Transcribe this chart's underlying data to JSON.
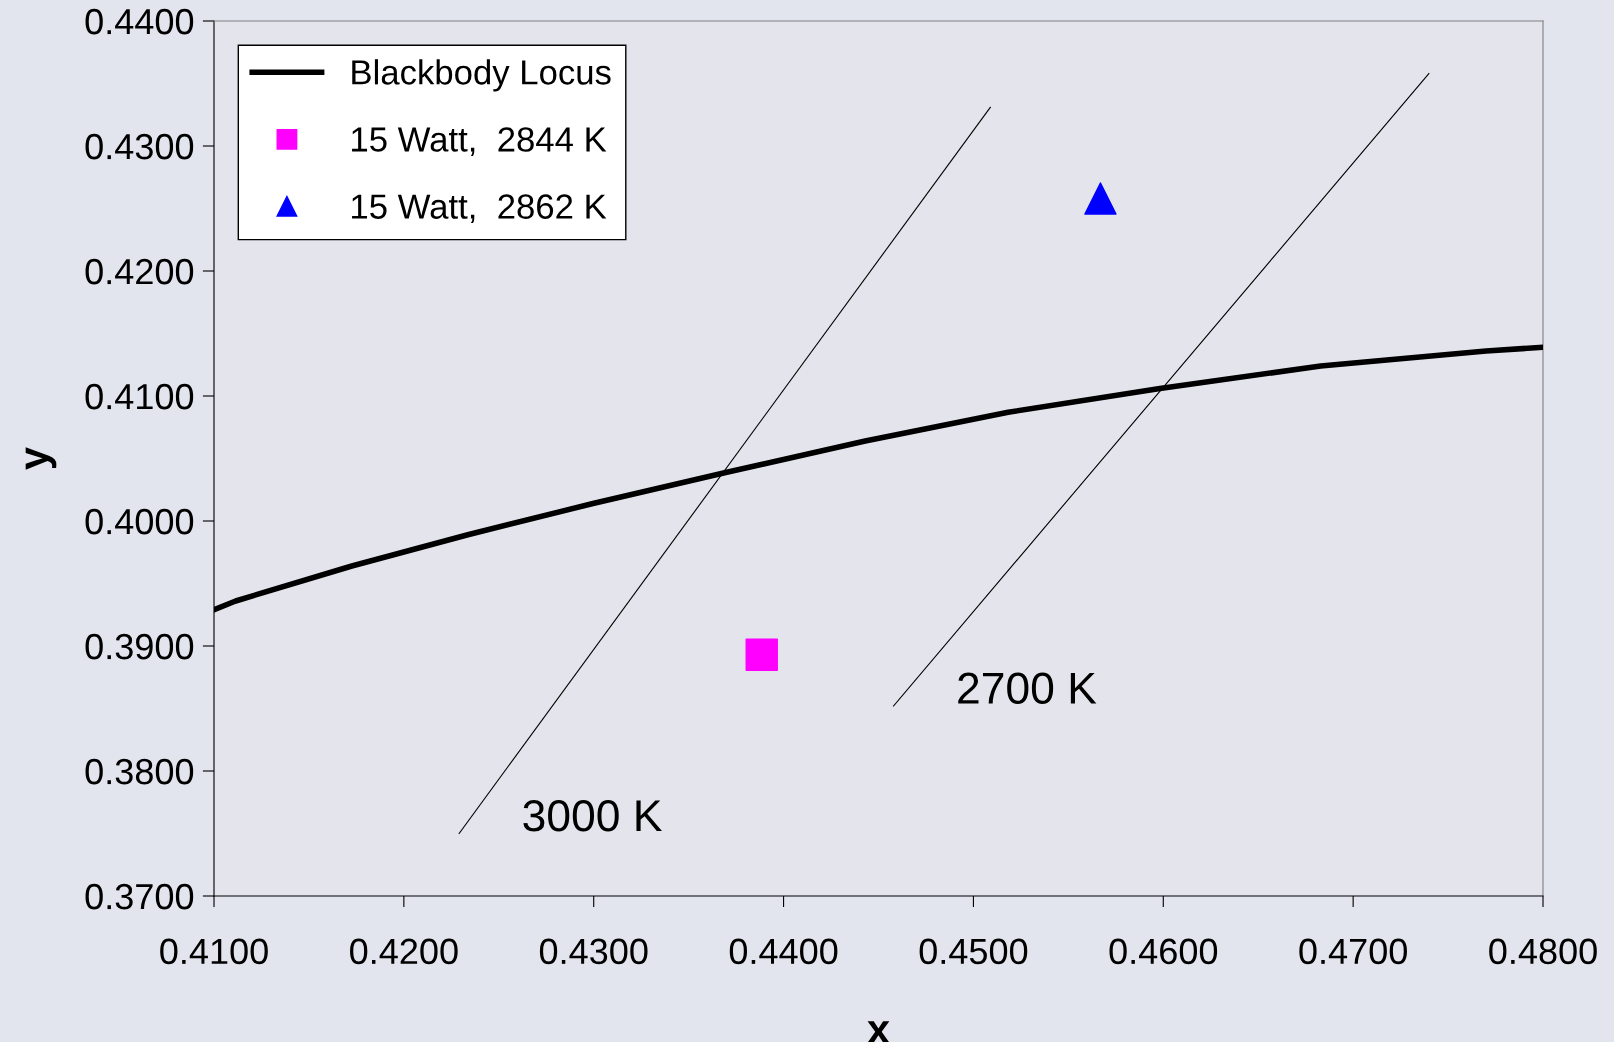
{
  "chart_data": {
    "type": "line",
    "xlabel": "x",
    "ylabel": "y",
    "xlim": [
      0.41,
      0.48
    ],
    "ylim": [
      0.37,
      0.44
    ],
    "xticks": [
      {
        "value": 0.41,
        "label": "0.4100"
      },
      {
        "value": 0.42,
        "label": "0.4200"
      },
      {
        "value": 0.43,
        "label": "0.4300"
      },
      {
        "value": 0.44,
        "label": "0.4400"
      },
      {
        "value": 0.45,
        "label": "0.4500"
      },
      {
        "value": 0.46,
        "label": "0.4600"
      },
      {
        "value": 0.47,
        "label": "0.4700"
      },
      {
        "value": 0.48,
        "label": "0.4800"
      }
    ],
    "yticks": [
      {
        "value": 0.37,
        "label": "0.3700"
      },
      {
        "value": 0.38,
        "label": "0.3800"
      },
      {
        "value": 0.39,
        "label": "0.3900"
      },
      {
        "value": 0.4,
        "label": "0.4000"
      },
      {
        "value": 0.41,
        "label": "0.4100"
      },
      {
        "value": 0.42,
        "label": "0.4200"
      },
      {
        "value": 0.43,
        "label": "0.4300"
      },
      {
        "value": 0.44,
        "label": "0.4400"
      }
    ],
    "grid": false,
    "legend": "top left",
    "series": [
      {
        "name": "Blackbody Locus",
        "color": "#000000",
        "marker": "none",
        "x": [
          0.41,
          0.41114,
          0.41726,
          0.42337,
          0.42996,
          0.43701,
          0.4443,
          0.45183,
          0.45982,
          0.46829,
          0.477,
          0.48
        ],
        "values": [
          0.3929,
          0.3936,
          0.3964,
          0.3989,
          0.4014,
          0.4039,
          0.4064,
          0.4087,
          0.4106,
          0.4124,
          0.4136,
          0.4139
        ]
      },
      {
        "name": "15 Watt,  2844 K",
        "type": "scatter",
        "color": "#ff00ff",
        "marker": "square",
        "x": [
          0.43885
        ],
        "values": [
          0.3893
        ]
      },
      {
        "name": "15 Watt,  2862 K",
        "type": "scatter",
        "color": "#0000ff",
        "marker": "triangle",
        "x": [
          0.45669
        ],
        "values": [
          0.4258
        ]
      },
      {
        "color": "#000000",
        "marker": "none",
        "x": [
          0.42291,
          0.45089
        ],
        "values": [
          0.375,
          0.4331
        ]
      },
      {
        "color": "#000000",
        "marker": "none",
        "x": [
          0.44579,
          0.47399
        ],
        "values": [
          0.3852,
          0.4358
        ]
      }
    ],
    "annotations": [
      "3000 K",
      "2700 K"
    ]
  }
}
